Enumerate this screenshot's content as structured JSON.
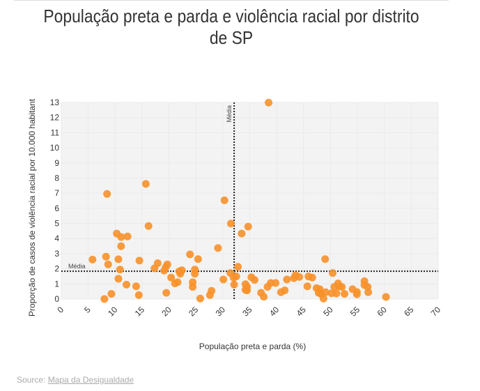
{
  "page": {
    "title": "População preta e parda e violência racial por distrito de SP",
    "source_prefix": "Source: ",
    "source_link": "Mapa da Desigualdade"
  },
  "colors": {
    "point": "#F7912A",
    "plot_background": "#F3F3F3",
    "grid": "#EAEAEA",
    "mean_line": "#222222"
  },
  "chart_data": {
    "type": "scatter",
    "title": "População preta e parda e violência racial por distrito de SP",
    "xlabel": "População preta e parda (%)",
    "ylabel": "Proporção de casos de violência racial por 10.000 habitant",
    "xlim": [
      0,
      70
    ],
    "ylim": [
      0,
      13
    ],
    "x_ticks": [
      "0",
      "5",
      "10",
      "15",
      "20",
      "25",
      "30",
      "35",
      "40",
      "45",
      "50",
      "55",
      "60",
      "65",
      "70"
    ],
    "y_ticks": [
      "0",
      "1",
      "2",
      "3",
      "4",
      "5",
      "6",
      "7",
      "8",
      "9",
      "10",
      "11",
      "12",
      "13"
    ],
    "grid": true,
    "reference_lines": [
      {
        "orientation": "vertical",
        "label": "Média",
        "value": 32.1
      },
      {
        "orientation": "horizontal",
        "label": "Média",
        "value": 1.84
      }
    ],
    "points": [
      [
        5.8,
        2.61
      ],
      [
        8.3,
        2.8
      ],
      [
        8.7,
        2.29
      ],
      [
        8.5,
        6.95
      ],
      [
        8.0,
        0.0
      ],
      [
        9.3,
        0.34
      ],
      [
        10.3,
        4.33
      ],
      [
        11.1,
        4.1
      ],
      [
        12.3,
        4.14
      ],
      [
        11.1,
        3.49
      ],
      [
        10.6,
        2.63
      ],
      [
        10.9,
        1.95
      ],
      [
        10.6,
        1.34
      ],
      [
        12.1,
        0.95
      ],
      [
        13.9,
        0.84
      ],
      [
        14.4,
        0.26
      ],
      [
        14.5,
        2.54
      ],
      [
        15.7,
        7.61
      ],
      [
        16.2,
        4.83
      ],
      [
        17.3,
        2.03
      ],
      [
        17.9,
        2.37
      ],
      [
        19.1,
        1.88
      ],
      [
        19.4,
        2.11
      ],
      [
        19.7,
        2.29
      ],
      [
        19.5,
        0.41
      ],
      [
        20.4,
        1.42
      ],
      [
        21.1,
        1.03
      ],
      [
        21.6,
        1.11
      ],
      [
        21.9,
        1.83
      ],
      [
        22.1,
        1.67
      ],
      [
        22.4,
        1.9
      ],
      [
        23.9,
        2.95
      ],
      [
        24.4,
        1.11
      ],
      [
        24.4,
        0.8
      ],
      [
        24.8,
        1.95
      ],
      [
        24.8,
        1.67
      ],
      [
        25.4,
        2.64
      ],
      [
        25.8,
        0.03
      ],
      [
        27.6,
        0.26
      ],
      [
        27.9,
        0.54
      ],
      [
        29.1,
        3.37
      ],
      [
        30.1,
        1.29
      ],
      [
        30.3,
        6.53
      ],
      [
        31.4,
        1.72
      ],
      [
        31.5,
        4.99
      ],
      [
        32.0,
        1.42
      ],
      [
        32.1,
        0.95
      ],
      [
        32.5,
        1.49
      ],
      [
        32.8,
        2.13
      ],
      [
        33.5,
        4.33
      ],
      [
        34.2,
        0.98
      ],
      [
        34.5,
        0.8
      ],
      [
        34.2,
        0.61
      ],
      [
        34.5,
        0.57
      ],
      [
        34.7,
        4.79
      ],
      [
        35.3,
        1.44
      ],
      [
        35.9,
        1.26
      ],
      [
        37.1,
        0.41
      ],
      [
        37.6,
        0.15
      ],
      [
        38.3,
        0.8
      ],
      [
        38.5,
        12.99
      ],
      [
        38.9,
        1.06
      ],
      [
        39.8,
        1.06
      ],
      [
        40.8,
        0.45
      ],
      [
        41.5,
        0.57
      ],
      [
        41.9,
        1.29
      ],
      [
        43.2,
        1.38
      ],
      [
        43.5,
        1.57
      ],
      [
        44.2,
        1.46
      ],
      [
        45.7,
        0.84
      ],
      [
        45.9,
        1.49
      ],
      [
        46.6,
        1.42
      ],
      [
        47.4,
        0.72
      ],
      [
        47.8,
        0.41
      ],
      [
        48.0,
        0.65
      ],
      [
        48.2,
        0.34
      ],
      [
        48.7,
        0.03
      ],
      [
        49.0,
        2.64
      ],
      [
        49.1,
        0.45
      ],
      [
        50.2,
        0.38
      ],
      [
        50.4,
        1.72
      ],
      [
        50.7,
        0.8
      ],
      [
        51.1,
        0.37
      ],
      [
        51.4,
        1.03
      ],
      [
        51.6,
        0.83
      ],
      [
        52.1,
        0.8
      ],
      [
        52.6,
        0.34
      ],
      [
        54.1,
        0.65
      ],
      [
        54.9,
        0.46
      ],
      [
        54.9,
        0.31
      ],
      [
        56.3,
        1.18
      ],
      [
        56.3,
        0.92
      ],
      [
        56.9,
        0.8
      ],
      [
        57.0,
        0.45
      ],
      [
        60.3,
        0.14
      ]
    ]
  }
}
